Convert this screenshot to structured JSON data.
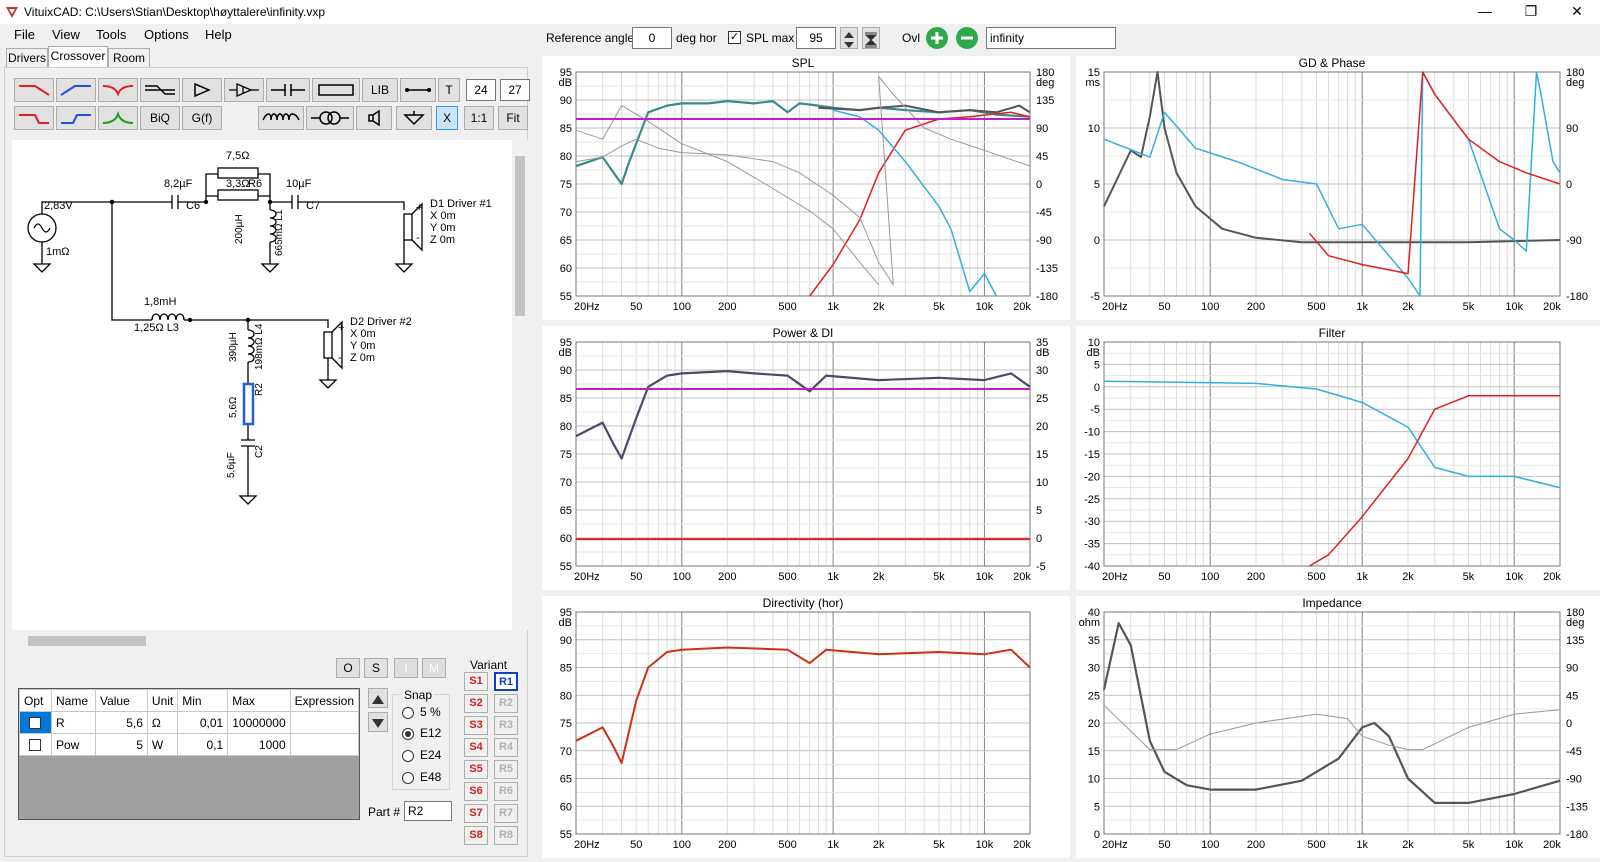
{
  "window": {
    "title": "VituixCAD: C:\\Users\\Stian\\Desktop\\høyttalere\\infinity.vxp",
    "minimize": "—",
    "maximize": "❐",
    "close": "✕"
  },
  "menu": {
    "file": "File",
    "view": "View",
    "tools": "Tools",
    "options": "Options",
    "help": "Help"
  },
  "tabs": {
    "drivers": "Drivers",
    "crossover": "Crossover",
    "room": "Room"
  },
  "toolbar": {
    "biq": "BiQ",
    "gf": "G(f)",
    "lib": "LIB",
    "t": "T",
    "n1": "24",
    "n2": "27",
    "x": "X",
    "ratio": "1:1",
    "fit": "Fit"
  },
  "top": {
    "ref_label": "Reference angle",
    "ref_value": "0",
    "deg_hor": "deg hor",
    "spl_label": "SPL max",
    "spl_value": "95",
    "ovl": "Ovl",
    "ovl_name": "infinity"
  },
  "schematic": {
    "src_v": "2,83V",
    "src_r": "1mΩ",
    "c6": "8,2µF",
    "c6n": "C6",
    "r6v": "7,5Ω",
    "r6b": "3,3Ω",
    "r6": "R6",
    "c7": "10µF",
    "c7n": "C7",
    "l1v": "200µH",
    "l1r": "665mΩ L1",
    "d1": "D1 Driver #1",
    "d1x": "X 0m",
    "d1y": "Y 0m",
    "d1z": "Z 0m",
    "l3v": "1,8mH",
    "l3r": "1,25Ω  L3",
    "l4v": "390µH",
    "l4r": "198mΩ L4",
    "r2v": "5,6Ω",
    "r2n": "R2",
    "c2v": "5,6µF",
    "c2n": "C2",
    "d2": "D2 Driver #2",
    "d2x": "X 0m",
    "d2y": "Y 0m",
    "d2z": "Z 0m",
    "plus": "+",
    "minus": "-"
  },
  "buttons": {
    "o": "O",
    "s": "S",
    "i": "I",
    "m": "M"
  },
  "params": {
    "headers": [
      "Opt",
      "Name",
      "Value",
      "Unit",
      "Min",
      "Max",
      "Expression"
    ],
    "rows": [
      [
        "R",
        "5,6",
        "Ω",
        "0,01",
        "10000000",
        ""
      ],
      [
        "Pow",
        "5",
        "W",
        "0,1",
        "1000",
        ""
      ]
    ]
  },
  "snap": {
    "label": "Snap",
    "options": [
      "5 %",
      "E12",
      "E24",
      "E48"
    ],
    "selected": 1
  },
  "part": {
    "label": "Part #",
    "value": "R2"
  },
  "variant": {
    "label": "Variant",
    "s": [
      "S1",
      "S2",
      "S3",
      "S4",
      "S5",
      "S6",
      "S7",
      "S8"
    ],
    "r": [
      "R1",
      "R2",
      "R3",
      "R4",
      "R5",
      "R6",
      "R7",
      "R8"
    ]
  },
  "freq_ticks": [
    "20Hz",
    "50",
    "100",
    "200",
    "500",
    "1k",
    "2k",
    "5k",
    "10k",
    "20k"
  ],
  "charts": {
    "spl": {
      "title": "SPL",
      "left_unit": "dB",
      "right_unit": "deg",
      "left": [
        "95",
        "90",
        "85",
        "80",
        "75",
        "70",
        "65",
        "60",
        "55"
      ],
      "right": [
        "180",
        "135",
        "90",
        "45",
        "0",
        "-45",
        "-90",
        "-135",
        "-180"
      ]
    },
    "gd": {
      "title": "GD & Phase",
      "left_unit": "ms",
      "right_unit": "deg",
      "left": [
        "15",
        "10",
        "5",
        "0",
        "-5"
      ],
      "right": [
        "180",
        "90",
        "0",
        "-90",
        "-180"
      ]
    },
    "power": {
      "title": "Power & DI",
      "left_unit": "dB",
      "right_unit": "dB",
      "left": [
        "95",
        "90",
        "85",
        "80",
        "75",
        "70",
        "65",
        "60",
        "55"
      ],
      "right": [
        "35",
        "30",
        "25",
        "20",
        "15",
        "10",
        "5",
        "0",
        "-5"
      ]
    },
    "filter": {
      "title": "Filter",
      "left_unit": "dB",
      "right_unit": "",
      "left": [
        "10",
        "5",
        "0",
        "-5",
        "-10",
        "-15",
        "-20",
        "-25",
        "-30",
        "-35",
        "-40"
      ],
      "right": []
    },
    "directivity": {
      "title": "Directivity (hor)",
      "left_unit": "dB",
      "right_unit": "",
      "left": [
        "95",
        "90",
        "85",
        "80",
        "75",
        "70",
        "65",
        "60",
        "55"
      ],
      "right": []
    },
    "impedance": {
      "title": "Impedance",
      "left_unit": "ohm",
      "right_unit": "deg",
      "left": [
        "40",
        "35",
        "30",
        "25",
        "20",
        "15",
        "10",
        "5",
        "0"
      ],
      "right": [
        "180",
        "135",
        "90",
        "45",
        "0",
        "-45",
        "-90",
        "-135",
        "-180"
      ]
    }
  },
  "colors": {
    "teal": "#3a8c8c",
    "red": "#e02020",
    "cyan": "#30b0e0",
    "dark": "#555555",
    "purple": "#c020c0",
    "navy": "#4a4a6a",
    "orange": "#d03010"
  }
}
